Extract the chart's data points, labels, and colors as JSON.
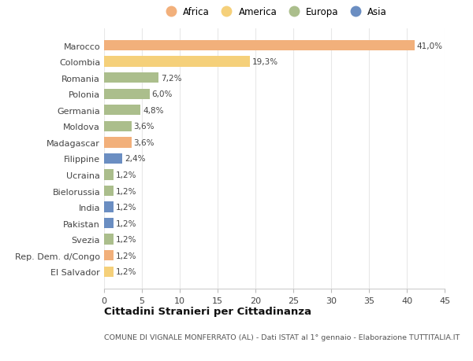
{
  "countries": [
    "Marocco",
    "Colombia",
    "Romania",
    "Polonia",
    "Germania",
    "Moldova",
    "Madagascar",
    "Filippine",
    "Ucraina",
    "Bielorussia",
    "India",
    "Pakistan",
    "Svezia",
    "Rep. Dem. d/Congo",
    "El Salvador"
  ],
  "values": [
    41.0,
    19.3,
    7.2,
    6.0,
    4.8,
    3.6,
    3.6,
    2.4,
    1.2,
    1.2,
    1.2,
    1.2,
    1.2,
    1.2,
    1.2
  ],
  "labels": [
    "41,0%",
    "19,3%",
    "7,2%",
    "6,0%",
    "4,8%",
    "3,6%",
    "3,6%",
    "2,4%",
    "1,2%",
    "1,2%",
    "1,2%",
    "1,2%",
    "1,2%",
    "1,2%",
    "1,2%"
  ],
  "continents": [
    "Africa",
    "America",
    "Europa",
    "Europa",
    "Europa",
    "Europa",
    "Africa",
    "Asia",
    "Europa",
    "Europa",
    "Asia",
    "Asia",
    "Europa",
    "Africa",
    "America"
  ],
  "colors": {
    "Africa": "#F2B07B",
    "America": "#F5D07A",
    "Europa": "#ABBE8C",
    "Asia": "#6B8EC2"
  },
  "legend_order": [
    "Africa",
    "America",
    "Europa",
    "Asia"
  ],
  "title": "Cittadini Stranieri per Cittadinanza",
  "subtitle": "COMUNE DI VIGNALE MONFERRATO (AL) - Dati ISTAT al 1° gennaio - Elaborazione TUTTITALIA.IT",
  "xlim": [
    0,
    45
  ],
  "xticks": [
    0,
    5,
    10,
    15,
    20,
    25,
    30,
    35,
    40,
    45
  ],
  "background_color": "#ffffff",
  "grid_color": "#e8e8e8"
}
